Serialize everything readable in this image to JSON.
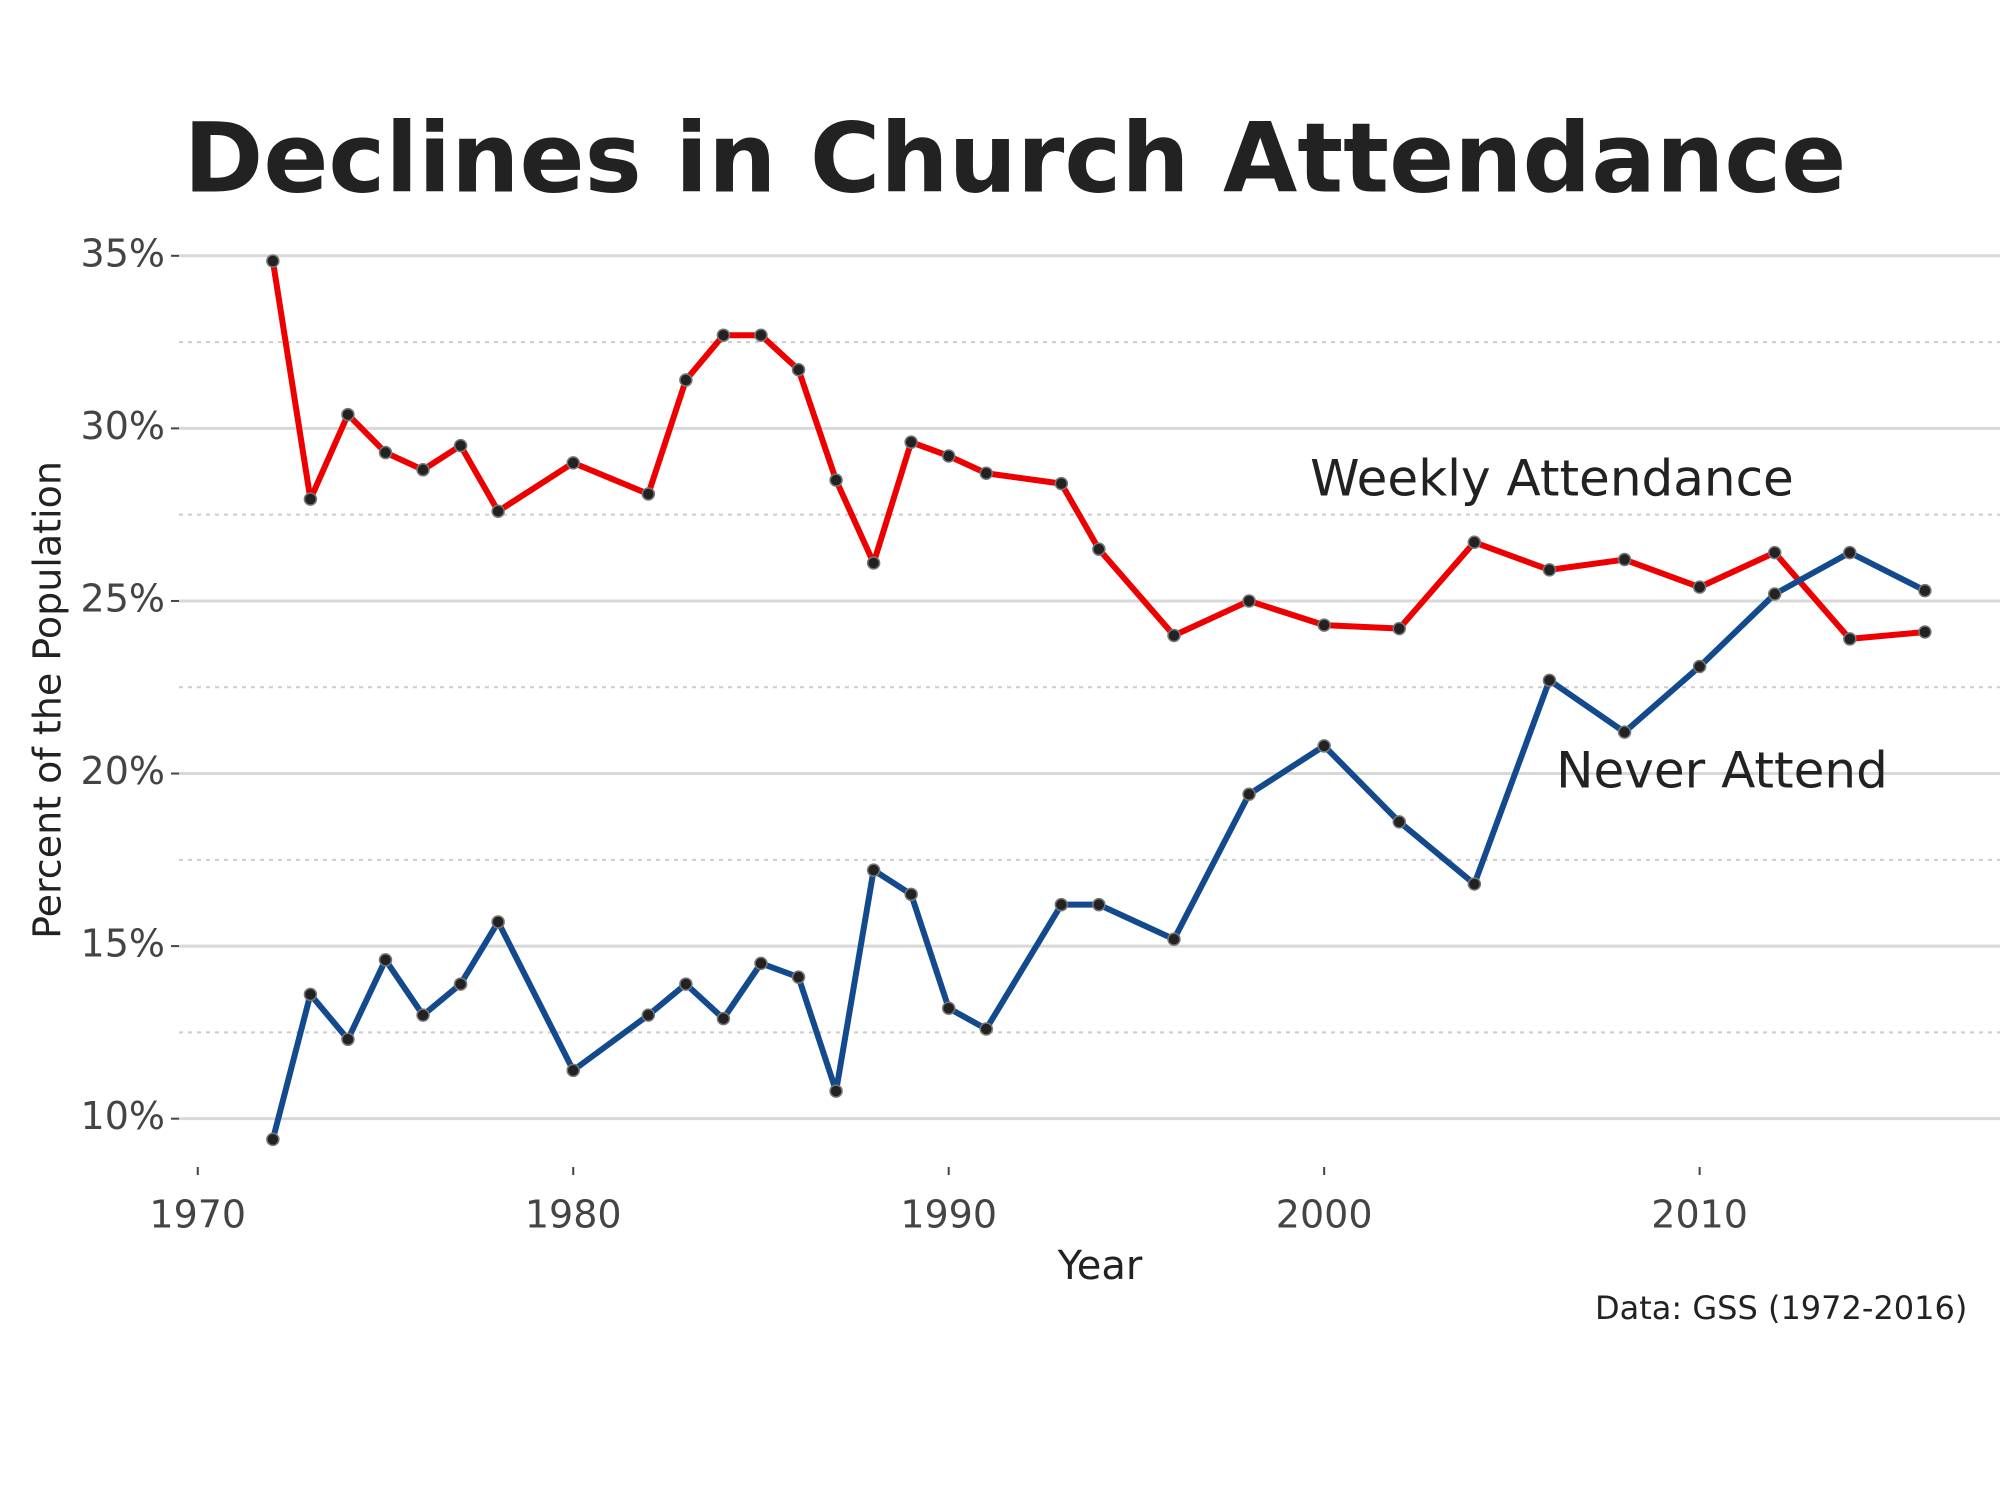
{
  "chart_data": {
    "type": "line",
    "title": "Declines in Church Attendance",
    "x_label": "Year",
    "y_label": "Percent of the Population",
    "caption": "Data: GSS (1972-2016)",
    "x": [
      1972,
      1973,
      1974,
      1975,
      1976,
      1977,
      1978,
      1980,
      1982,
      1983,
      1984,
      1985,
      1986,
      1987,
      1988,
      1989,
      1990,
      1991,
      1993,
      1994,
      1996,
      1998,
      2000,
      2002,
      2004,
      2006,
      2008,
      2010,
      2012,
      2014,
      2016
    ],
    "series": [
      {
        "name": "Weekly Attendance",
        "color": "#ee0000",
        "values": [
          34.85,
          27.95,
          30.4,
          29.3,
          28.8,
          29.5,
          27.6,
          29.0,
          28.1,
          31.4,
          32.7,
          32.7,
          31.7,
          28.5,
          26.1,
          29.6,
          29.2,
          28.7,
          28.4,
          26.5,
          24.0,
          25.0,
          24.3,
          24.2,
          26.7,
          25.9,
          26.2,
          25.4,
          26.4,
          23.9,
          24.1
        ]
      },
      {
        "name": "Never Attend",
        "color": "#134a8e",
        "values": [
          9.4,
          13.6,
          12.3,
          14.6,
          13.0,
          13.9,
          15.7,
          11.4,
          13.0,
          13.9,
          12.9,
          14.5,
          14.1,
          10.8,
          17.2,
          16.5,
          13.2,
          12.6,
          16.2,
          16.2,
          15.2,
          19.4,
          20.8,
          18.6,
          16.8,
          22.7,
          21.2,
          23.1,
          25.2,
          26.4,
          25.3
        ]
      }
    ],
    "xlim": [
      1969.5,
      2018
    ],
    "xticks": [
      1970,
      1980,
      1990,
      2000,
      2010
    ],
    "ylim": [
      8.6,
      35.4
    ],
    "yticks": [
      {
        "value": 10,
        "label": "10%"
      },
      {
        "value": 15,
        "label": "15%"
      },
      {
        "value": 20,
        "label": "20%"
      },
      {
        "value": 25,
        "label": "25%"
      },
      {
        "value": 30,
        "label": "30%"
      },
      {
        "value": 35,
        "label": "35%"
      }
    ],
    "minor_yticks": [
      12.5,
      17.5,
      22.5,
      27.5,
      32.5
    ],
    "grid": true,
    "point_color": "#222222"
  }
}
